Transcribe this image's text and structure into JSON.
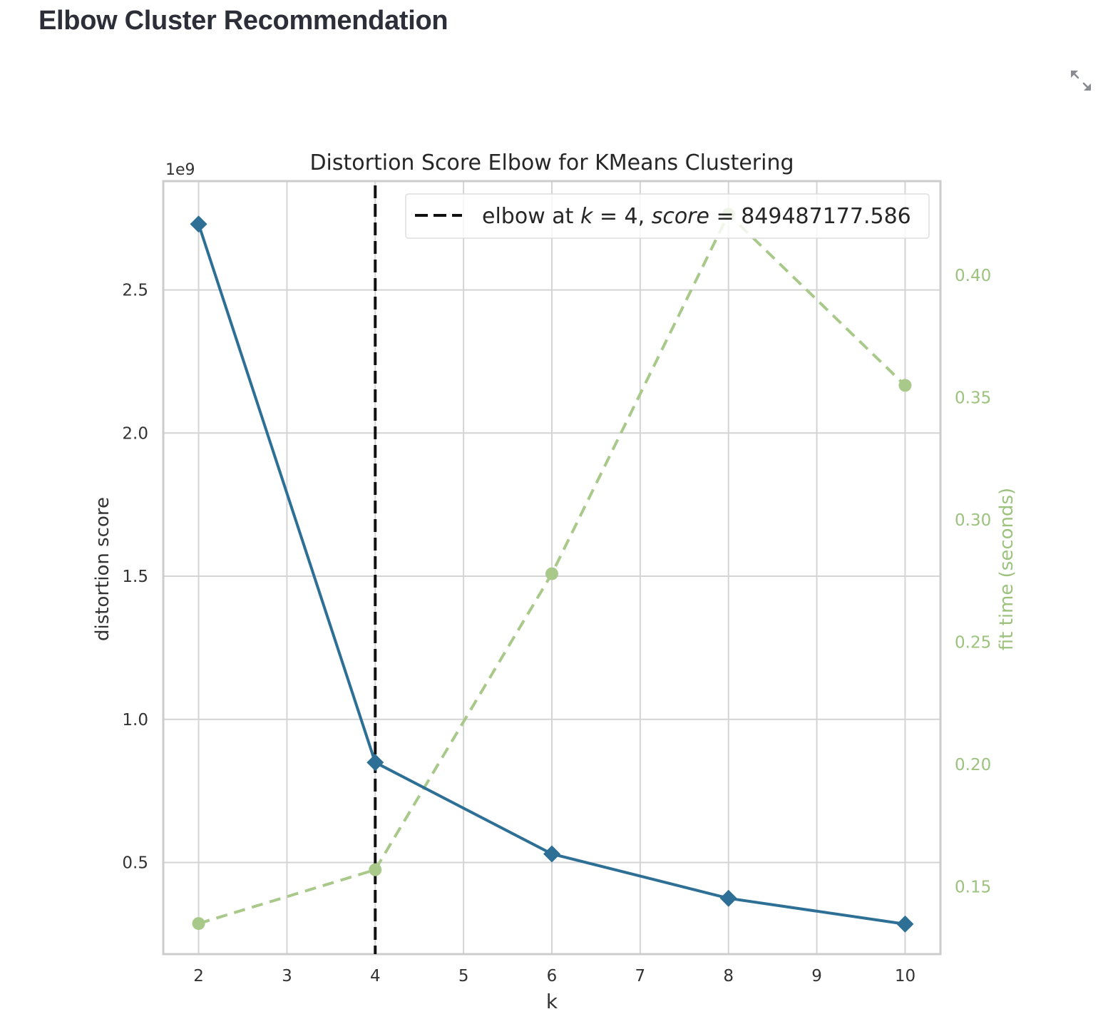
{
  "page": {
    "heading": "Elbow Cluster Recommendation"
  },
  "icons": {
    "expand": "expand-arrows-icon"
  },
  "colors": {
    "distortion_series": "#2e6f96",
    "fit_time_series": "#a9c98a",
    "elbow_line": "#111111",
    "grid": "#d4d4d4",
    "fit_time_axis_text": "#9cc27e"
  },
  "chart_data": {
    "type": "line",
    "title": "Distortion Score Elbow for KMeans Clustering",
    "xlabel": "k",
    "ylabel": "distortion score",
    "y2label": "fit time (seconds)",
    "y_offset_label": "1e9",
    "x": [
      2,
      4,
      6,
      8,
      10
    ],
    "xlim": [
      1.6,
      10.4
    ],
    "ylim": [
      0.18,
      2.88
    ],
    "y2lim": [
      0.1225,
      0.4385
    ],
    "x_ticks": [
      "2",
      "3",
      "4",
      "5",
      "6",
      "7",
      "8",
      "9",
      "10"
    ],
    "y_ticks": [
      "0.5",
      "1.0",
      "1.5",
      "2.0",
      "2.5"
    ],
    "y2_ticks": [
      "0.15",
      "0.20",
      "0.25",
      "0.30",
      "0.35",
      "0.40"
    ],
    "grid": true,
    "legend_position": "top-right",
    "series": [
      {
        "values": [
          2.73,
          0.849487177586,
          0.53,
          0.375,
          0.285
        ],
        "axis": "left",
        "marker": "diamond",
        "style": "solid"
      },
      {
        "values": [
          0.135,
          0.157,
          0.278,
          0.425,
          0.355
        ],
        "axis": "right",
        "marker": "circle",
        "style": "dashed"
      }
    ],
    "elbow": {
      "k": 4,
      "legend_prefix": "elbow at ",
      "legend_k": "k",
      "legend_eq_k": " = 4, ",
      "legend_score": "score",
      "legend_eq_score": " = 849487177.586"
    }
  }
}
